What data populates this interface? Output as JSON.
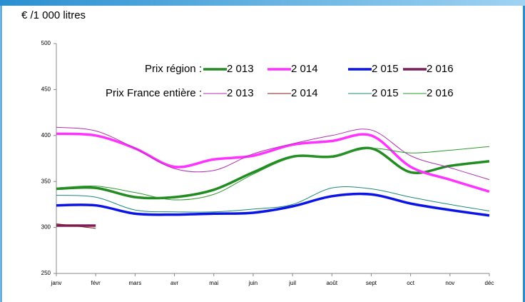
{
  "chart_data": {
    "type": "line",
    "title": "€ /1 000 litres",
    "categories": [
      "janv",
      "févr",
      "mars",
      "avr",
      "mai",
      "juin",
      "juil",
      "août",
      "sept",
      "oct",
      "nov",
      "déc"
    ],
    "ylim": [
      250,
      500
    ],
    "yticks": [
      250,
      300,
      350,
      400,
      450,
      500
    ],
    "grid": false,
    "series_groups": [
      {
        "label": "Prix région :",
        "width": 3.5,
        "series": [
          {
            "name": "2 013",
            "color": "#228b22",
            "values": [
              342,
              343,
              333,
              333,
              341,
              360,
              377,
              377,
              386,
              360,
              367,
              372
            ]
          },
          {
            "name": "2 014",
            "color": "#ff33ff",
            "values": [
              402,
              400,
              386,
              366,
              374,
              378,
              390,
              394,
              400,
              366,
              352,
              339
            ]
          },
          {
            "name": "2 015",
            "color": "#0a14e6",
            "values": [
              324,
              324,
              315,
              314,
              315,
              316,
              323,
              334,
              336,
              326,
              319,
              313
            ]
          },
          {
            "name": "2 016",
            "color": "#7a1f5c",
            "values": [
              302,
              302,
              null,
              null,
              null,
              null,
              null,
              null,
              null,
              null,
              null,
              null
            ]
          }
        ]
      },
      {
        "label": "Prix France entière :",
        "width": 1,
        "series": [
          {
            "name": "2 013",
            "color": "#b030b0",
            "values": [
              409,
              405,
              386,
              364,
              362,
              380,
              391,
              400,
              406,
              378,
              365,
              352
            ]
          },
          {
            "name": "2 014",
            "color": "#8b1a1a",
            "values": [
              304,
              299,
              null,
              null,
              null,
              null,
              null,
              null,
              null,
              null,
              null,
              null
            ]
          },
          {
            "name": "2 015",
            "color": "#1a8a7a",
            "values": [
              335,
              333,
              319,
              317,
              317,
              320,
              325,
              343,
              342,
              333,
              325,
              318
            ]
          },
          {
            "name": "2 016",
            "color": "#2e9a2e",
            "values": [
              343,
              345,
              338,
              330,
              336,
              358,
              376,
              378,
              386,
              381,
              384,
              388
            ]
          }
        ]
      }
    ]
  }
}
